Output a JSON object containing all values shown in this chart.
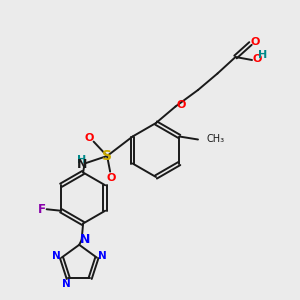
{
  "bg_color": "#ebebeb",
  "bond_color": "#1a1a1a",
  "bond_width": 1.4,
  "figsize": [
    3.0,
    3.0
  ],
  "dpi": 100,
  "colors": {
    "O": "#ff0000",
    "N": "#0000ff",
    "S": "#ccaa00",
    "F": "#8800aa",
    "H": "#008888",
    "C": "#1a1a1a"
  }
}
